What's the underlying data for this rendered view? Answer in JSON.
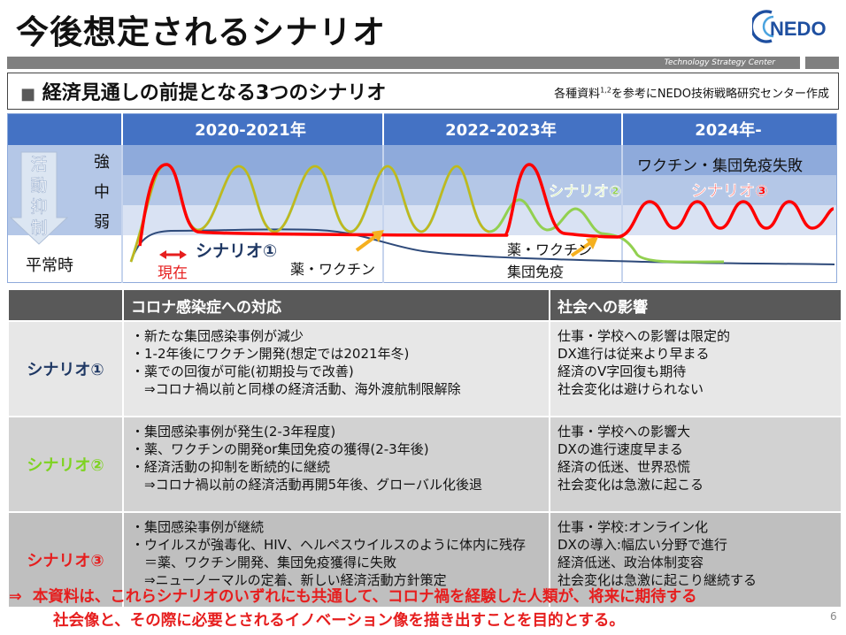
{
  "header": {
    "title": "今後想定されるシナリオ",
    "logo_text": "NEDO",
    "banner_text": "Technology Strategy Center"
  },
  "subtitle": {
    "bullet": "■",
    "text": "経済見通しの前提となる3つのシナリオ",
    "source_prefix": "各種資料",
    "source_sup": "1,2",
    "source_suffix": "を参考にNEDO技術戦略研究センター作成"
  },
  "chart": {
    "periods": [
      "2020-2021年",
      "2022-2023年",
      "2024年-"
    ],
    "vertical_label": [
      "活",
      "動",
      "抑",
      "制"
    ],
    "levels": [
      "強",
      "中",
      "弱",
      "平常時"
    ],
    "now_label": "現在",
    "scenario1_label": "シナリオ①",
    "scenario2_label": "シナリオ②",
    "scenario3_label": "シナリオ③",
    "annotation_drug": "薬・ワクチン",
    "annotation_drug2": [
      "薬・ワクチン",
      "集団免疫"
    ],
    "annotation_fail": "ワクチン・集団免疫失敗",
    "colors": {
      "header_blue": "#4472c4",
      "band_dark": "#8eaadb",
      "band_mid": "#b4c7e7",
      "band_light": "#d9e2f3",
      "scenario1": "#1f3864",
      "scenario2": "#92d050",
      "scenario3": "#ff0000",
      "arrow": "#f5b01f"
    }
  },
  "table": {
    "col_response": "コロナ感染症への対応",
    "col_impact": "社会への影響",
    "rows": [
      {
        "name": "シナリオ①",
        "color": "#1f3864",
        "response": [
          "・新たな集団感染事例が減少",
          "・1-2年後にワクチン開発(想定では2021年冬)",
          "・薬での回復が可能(初期投与で改善)",
          "　⇒コロナ禍以前と同様の経済活動、海外渡航制限解除"
        ],
        "impact": [
          "仕事・学校への影響は限定的",
          "DX進行は従来より早まる",
          "経済のV字回復も期待",
          "社会変化は避けられない"
        ]
      },
      {
        "name": "シナリオ②",
        "color": "#7ed321",
        "response": [
          "・集団感染事例が発生(2-3年程度)",
          "・薬、ワクチンの開発or集団免疫の獲得(2-3年後)",
          "・経済活動の抑制を断続的に継続",
          "　⇒コロナ禍以前の経済活動再開5年後、グローバル化後退"
        ],
        "impact": [
          "仕事・学校への影響大",
          "DXの進行速度早まる",
          "経済の低迷、世界恐慌",
          "社会変化は急激に起こる"
        ]
      },
      {
        "name": "シナリオ③",
        "color": "#e61e1e",
        "response": [
          "・集団感染事例が継続",
          "・ウイルスが強毒化、HIV、ヘルペスウイルスのように体内に残存",
          "　＝薬、ワクチン開発、集団免疫獲得に失敗",
          "　⇒ニューノーマルの定着、新しい経済活動方針策定"
        ],
        "impact": [
          "仕事・学校:オンライン化",
          "DXの導入:幅広い分野で進行",
          "経済低迷、政治体制変容",
          "社会変化は急激に起こり継続する"
        ]
      }
    ]
  },
  "footer": {
    "arrow": "⇒",
    "line1": "本資料は、これらシナリオのいずれにも共通して、コロナ禍を経験した人類が、将来に期待する",
    "line2": "社会像と、その際に必要とされるイノベーション像を描き出すことを目的とする。"
  },
  "page_number": "6"
}
